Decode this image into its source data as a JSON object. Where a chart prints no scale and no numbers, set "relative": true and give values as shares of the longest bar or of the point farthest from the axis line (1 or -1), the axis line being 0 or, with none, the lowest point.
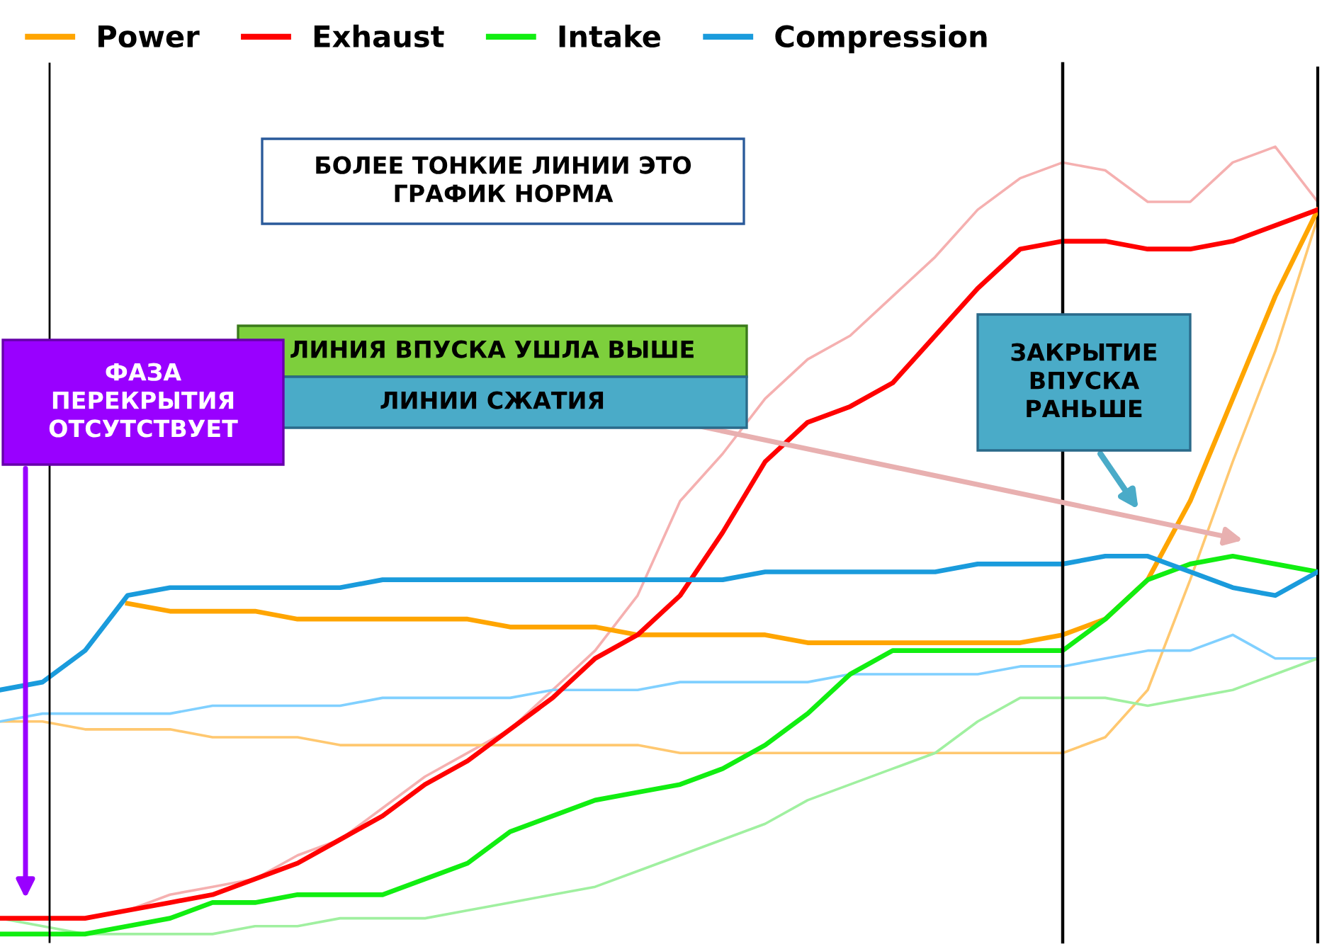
{
  "chart_data": {
    "type": "line",
    "relative": true,
    "legend": "top left",
    "grid": false,
    "marker": "none",
    "line_style": "solid",
    "categories": [
      null,
      null,
      null,
      null,
      null,
      null,
      null,
      null,
      null,
      null,
      null,
      null,
      null,
      null,
      null,
      null,
      null,
      null,
      null,
      null,
      null,
      null,
      null,
      null,
      null,
      null,
      null,
      null,
      null,
      null,
      null,
      null
    ],
    "series": [
      {
        "color": "#f5b0b0",
        "values": [
          0.02,
          0.02,
          0.02,
          0.03,
          0.05,
          0.06,
          0.07,
          0.1,
          0.12,
          0.16,
          0.2,
          0.23,
          0.26,
          0.31,
          0.36,
          0.43,
          0.55,
          0.61,
          0.68,
          0.73,
          0.76,
          0.81,
          0.86,
          0.92,
          0.96,
          0.98,
          0.97,
          0.93,
          0.93,
          0.98,
          1.0,
          0.93
        ]
      },
      {
        "color": "#ffc870",
        "values": [
          0.27,
          0.27,
          0.26,
          0.26,
          0.26,
          0.25,
          0.25,
          0.25,
          0.24,
          0.24,
          0.24,
          0.24,
          0.24,
          0.24,
          0.24,
          0.24,
          0.23,
          0.23,
          0.23,
          0.23,
          0.23,
          0.23,
          0.23,
          0.23,
          0.23,
          0.23,
          0.25,
          0.31,
          0.45,
          0.6,
          0.74,
          0.91
        ]
      },
      {
        "color": "#80d0ff",
        "values": [
          0.27,
          0.28,
          0.28,
          0.28,
          0.28,
          0.29,
          0.29,
          0.29,
          0.29,
          0.3,
          0.3,
          0.3,
          0.3,
          0.31,
          0.31,
          0.31,
          0.32,
          0.32,
          0.32,
          0.32,
          0.33,
          0.33,
          0.33,
          0.33,
          0.34,
          0.34,
          0.35,
          0.36,
          0.36,
          0.38,
          0.35,
          0.35
        ]
      },
      {
        "color": "#a0f0a0",
        "values": [
          0.02,
          0.01,
          0.0,
          0.0,
          0.0,
          0.0,
          0.01,
          0.01,
          0.02,
          0.02,
          0.02,
          0.03,
          0.04,
          0.05,
          0.06,
          0.08,
          0.1,
          0.12,
          0.14,
          0.17,
          0.19,
          0.21,
          0.23,
          0.27,
          0.3,
          0.3,
          0.3,
          0.29,
          0.3,
          0.31,
          0.33,
          0.35
        ]
      },
      {
        "name": "Power",
        "color": "#ffa500",
        "values": [
          null,
          null,
          null,
          0.42,
          0.41,
          0.41,
          0.41,
          0.4,
          0.4,
          0.4,
          0.4,
          0.4,
          0.39,
          0.39,
          0.39,
          0.38,
          0.38,
          0.38,
          0.38,
          0.37,
          0.37,
          0.37,
          0.37,
          0.37,
          0.37,
          0.38,
          0.4,
          0.45,
          0.55,
          0.68,
          0.81,
          0.92
        ]
      },
      {
        "name": "Exhaust",
        "color": "#ff0000",
        "values": [
          0.02,
          0.02,
          0.02,
          0.03,
          0.04,
          0.05,
          0.07,
          0.09,
          0.12,
          0.15,
          0.19,
          0.22,
          0.26,
          0.3,
          0.35,
          0.38,
          0.43,
          0.51,
          0.6,
          0.65,
          0.67,
          0.7,
          0.76,
          0.82,
          0.87,
          0.88,
          0.88,
          0.87,
          0.87,
          0.88,
          0.9,
          0.92
        ]
      },
      {
        "name": "Intake",
        "color": "#11ee11",
        "values": [
          0.0,
          0.0,
          0.0,
          0.01,
          0.02,
          0.04,
          0.04,
          0.05,
          0.05,
          0.05,
          0.07,
          0.09,
          0.13,
          0.15,
          0.17,
          0.18,
          0.19,
          0.21,
          0.24,
          0.28,
          0.33,
          0.36,
          0.36,
          0.36,
          0.36,
          0.36,
          0.4,
          0.45,
          0.47,
          0.48,
          0.47,
          0.46
        ]
      },
      {
        "name": "Compression",
        "color": "#1a9bdc",
        "values": [
          0.31,
          0.32,
          0.36,
          0.43,
          0.44,
          0.44,
          0.44,
          0.44,
          0.44,
          0.45,
          0.45,
          0.45,
          0.45,
          0.45,
          0.45,
          0.45,
          0.45,
          0.45,
          0.46,
          0.46,
          0.46,
          0.46,
          0.46,
          0.47,
          0.47,
          0.47,
          0.48,
          0.48,
          0.46,
          0.44,
          0.43,
          0.46
        ]
      }
    ],
    "annotations": [
      "БОЛЕЕ ТОНКИЕ ЛИНИИ ЭТО ГРАФИК НОРМА",
      "ЛИНИЯ ВПУСКА УШЛА ВЫШЕ",
      "ЛИНИИ СЖАТИЯ",
      "ФАЗА ПЕРЕКРЫТИЯ ОТСУТСТВУЕТ",
      "ЗАКРЫТИЕ ВПУСКА РАНЬШЕ"
    ]
  }
}
